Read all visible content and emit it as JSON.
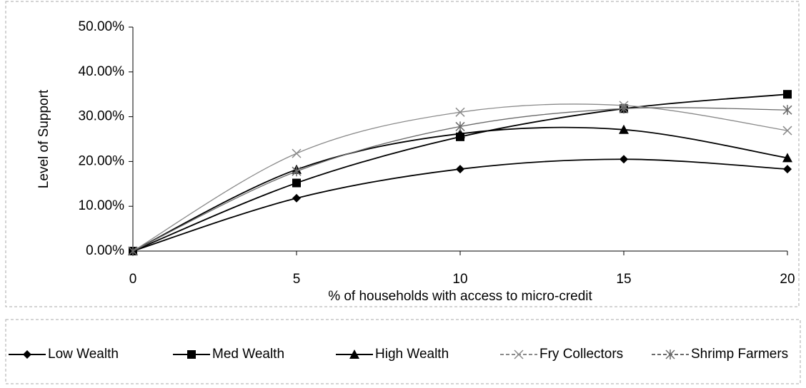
{
  "chart_data": {
    "type": "line",
    "y_label": "Level of Support",
    "x_label": "% of households with access to micro-credit",
    "x": [
      0,
      5,
      10,
      15,
      20
    ],
    "xlim": [
      0,
      20
    ],
    "xticks": [
      0,
      5,
      10,
      15,
      20
    ],
    "ylim": [
      0,
      50
    ],
    "yticks": [
      {
        "value": 0,
        "label": "0.00%"
      },
      {
        "value": 10,
        "label": "10.00%"
      },
      {
        "value": 20,
        "label": "20.00%"
      },
      {
        "value": 30,
        "label": "30.00%"
      },
      {
        "value": 40,
        "label": "40.00%"
      },
      {
        "value": 50,
        "label": "50.00%"
      }
    ],
    "smooth": true,
    "legend": "bottom",
    "series": [
      {
        "name": "Low Wealth",
        "color": "#000000",
        "marker": "diamond",
        "values": [
          0,
          11.8,
          18.3,
          20.5,
          18.3
        ]
      },
      {
        "name": "Med Wealth",
        "color": "#000000",
        "marker": "square",
        "values": [
          0,
          15.2,
          25.5,
          31.8,
          35
        ]
      },
      {
        "name": "High Wealth",
        "color": "#000000",
        "marker": "triangle",
        "values": [
          0,
          18.2,
          26.2,
          27.1,
          20.8
        ]
      },
      {
        "name": "Fry Collectors",
        "color": "#8a8a8a",
        "marker": "x",
        "values": [
          0,
          21.8,
          31,
          32.5,
          26.9
        ]
      },
      {
        "name": "Shrimp Farmers",
        "color": "#6a6a6a",
        "marker": "asterisk",
        "values": [
          0,
          17.8,
          27.8,
          31.8,
          31.5
        ]
      }
    ]
  }
}
